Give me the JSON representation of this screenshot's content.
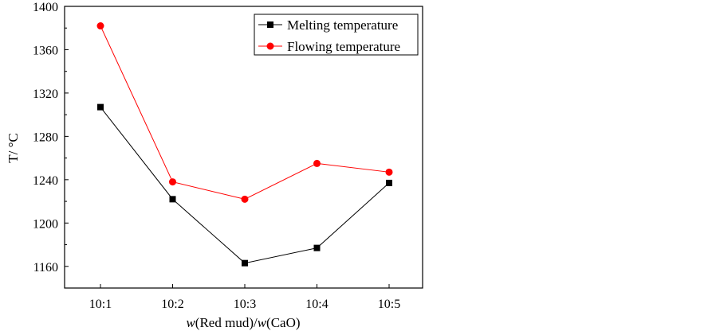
{
  "chart_data": {
    "type": "line",
    "title": "",
    "categories": [
      "10:1",
      "10:2",
      "10:3",
      "10:4",
      "10:5"
    ],
    "xlabel": {
      "parts": [
        {
          "text": "w",
          "italic": true
        },
        {
          "text": "(Red mud)/",
          "italic": false
        },
        {
          "text": "w",
          "italic": true
        },
        {
          "text": "(CaO)",
          "italic": false
        }
      ]
    },
    "ylabel": "T/ °C",
    "ylim": [
      1140,
      1400
    ],
    "yticks": [
      1160,
      1200,
      1240,
      1280,
      1320,
      1360,
      1400
    ],
    "grid": false,
    "legend_position": "top-right",
    "series": [
      {
        "name": "Melting temperature",
        "values": [
          1307,
          1222,
          1163,
          1177,
          1237
        ],
        "line_color": "#000000",
        "marker": "square",
        "marker_color": "#000000"
      },
      {
        "name": "Flowing temperature",
        "values": [
          1382,
          1238,
          1222,
          1255,
          1247
        ],
        "line_color": "#ff0000",
        "marker": "circle",
        "marker_color": "#ff0000"
      }
    ]
  }
}
